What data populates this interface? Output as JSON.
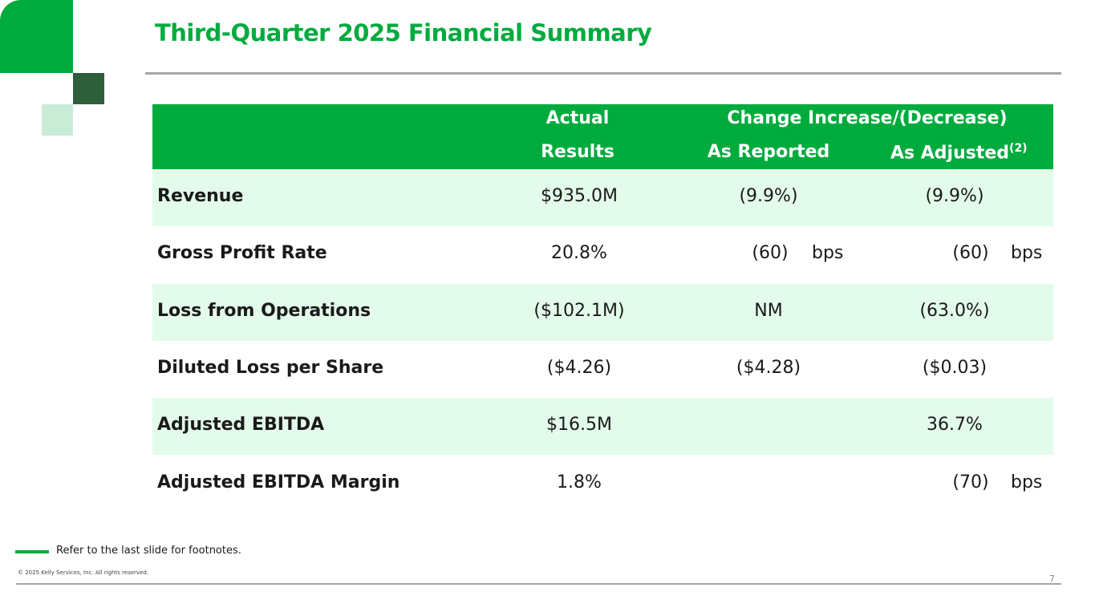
{
  "title": "Third-Quarter 2025 Financial Summary",
  "header": {
    "actual_line1": "Actual",
    "actual_line2": "Results",
    "change": "Change Increase/(Decrease)",
    "as_reported": "As Reported",
    "as_adjusted": "As Adjusted",
    "as_adjusted_note": "(2)"
  },
  "rows": [
    {
      "label": "Revenue",
      "actual": "$935.0M",
      "reported": "(9.9%)",
      "reported_unit": "",
      "adjusted": "(9.9%)",
      "adjusted_unit": ""
    },
    {
      "label": "Gross Profit Rate",
      "actual": "20.8%",
      "reported": "(60)",
      "reported_unit": "bps",
      "adjusted": "(60)",
      "adjusted_unit": "bps"
    },
    {
      "label": "Loss from Operations",
      "actual": "($102.1M)",
      "reported": "NM",
      "reported_unit": "",
      "adjusted": "(63.0%)",
      "adjusted_unit": ""
    },
    {
      "label": "Diluted Loss per Share",
      "actual": "($4.26)",
      "reported": "($4.28)",
      "reported_unit": "",
      "adjusted": "($0.03)",
      "adjusted_unit": ""
    },
    {
      "label": "Adjusted EBITDA",
      "actual": "$16.5M",
      "reported": "",
      "reported_unit": "",
      "adjusted": "36.7%",
      "adjusted_unit": ""
    },
    {
      "label": "Adjusted EBITDA Margin",
      "actual": "1.8%",
      "reported": "",
      "reported_unit": "",
      "adjusted": "(70)",
      "adjusted_unit": "bps"
    }
  ],
  "footnote": "Refer to the last slide for footnotes.",
  "copyright": "© 2025 Kelly Services, Inc. All rights reserved.",
  "page_number": "7",
  "colors": {
    "brand_green": "#00ab3e",
    "dark_green": "#2e5e3c",
    "light_green": "#e3fbea"
  }
}
